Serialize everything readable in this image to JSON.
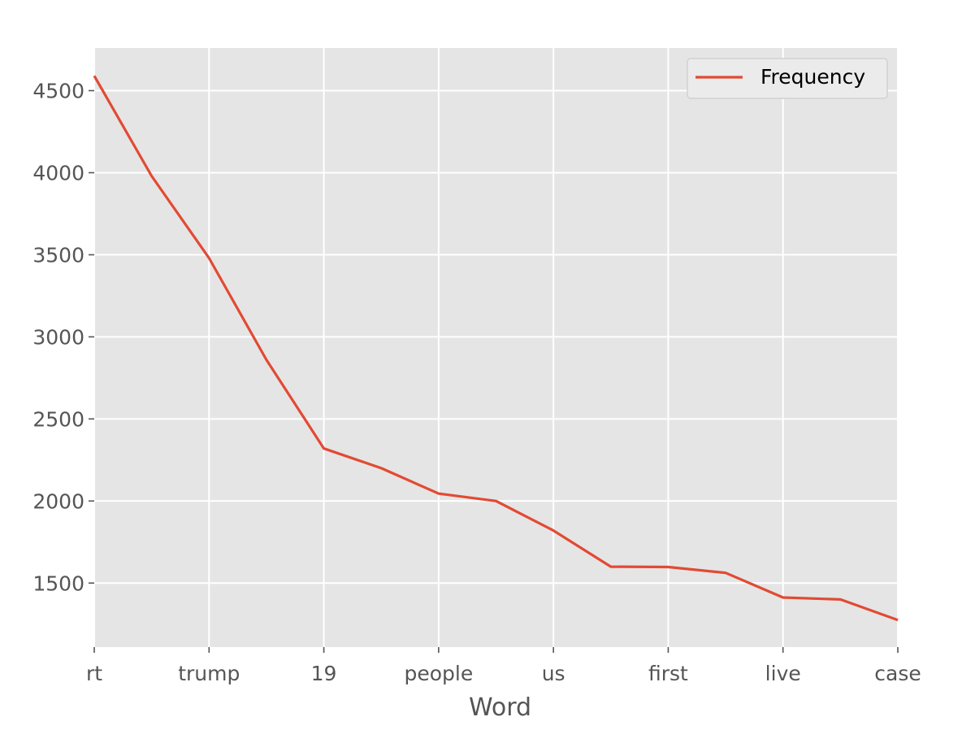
{
  "chart_data": {
    "type": "line",
    "categories": [
      "rt",
      "",
      "trump",
      "",
      "19",
      "",
      "people",
      "",
      "us",
      "",
      "first",
      "",
      "live",
      "",
      "case"
    ],
    "x_tick_labels": [
      "rt",
      "trump",
      "19",
      "people",
      "us",
      "first",
      "live",
      "case"
    ],
    "series": [
      {
        "name": "Frequency",
        "values": [
          4590,
          3980,
          3480,
          2860,
          2320,
          2200,
          2045,
          2000,
          1820,
          1600,
          1598,
          1562,
          1412,
          1400,
          1275
        ]
      }
    ],
    "title": "",
    "xlabel": "Word",
    "ylabel": "",
    "ylim": [
      1110,
      4760
    ],
    "y_ticks": [
      1500,
      2000,
      2500,
      3000,
      3500,
      4000,
      4500
    ],
    "grid": true,
    "legend_position": "top-right",
    "colors": {
      "line": "#e24a33",
      "background": "#e5e5e5",
      "grid": "#ffffff",
      "tick_text": "#555555"
    }
  }
}
